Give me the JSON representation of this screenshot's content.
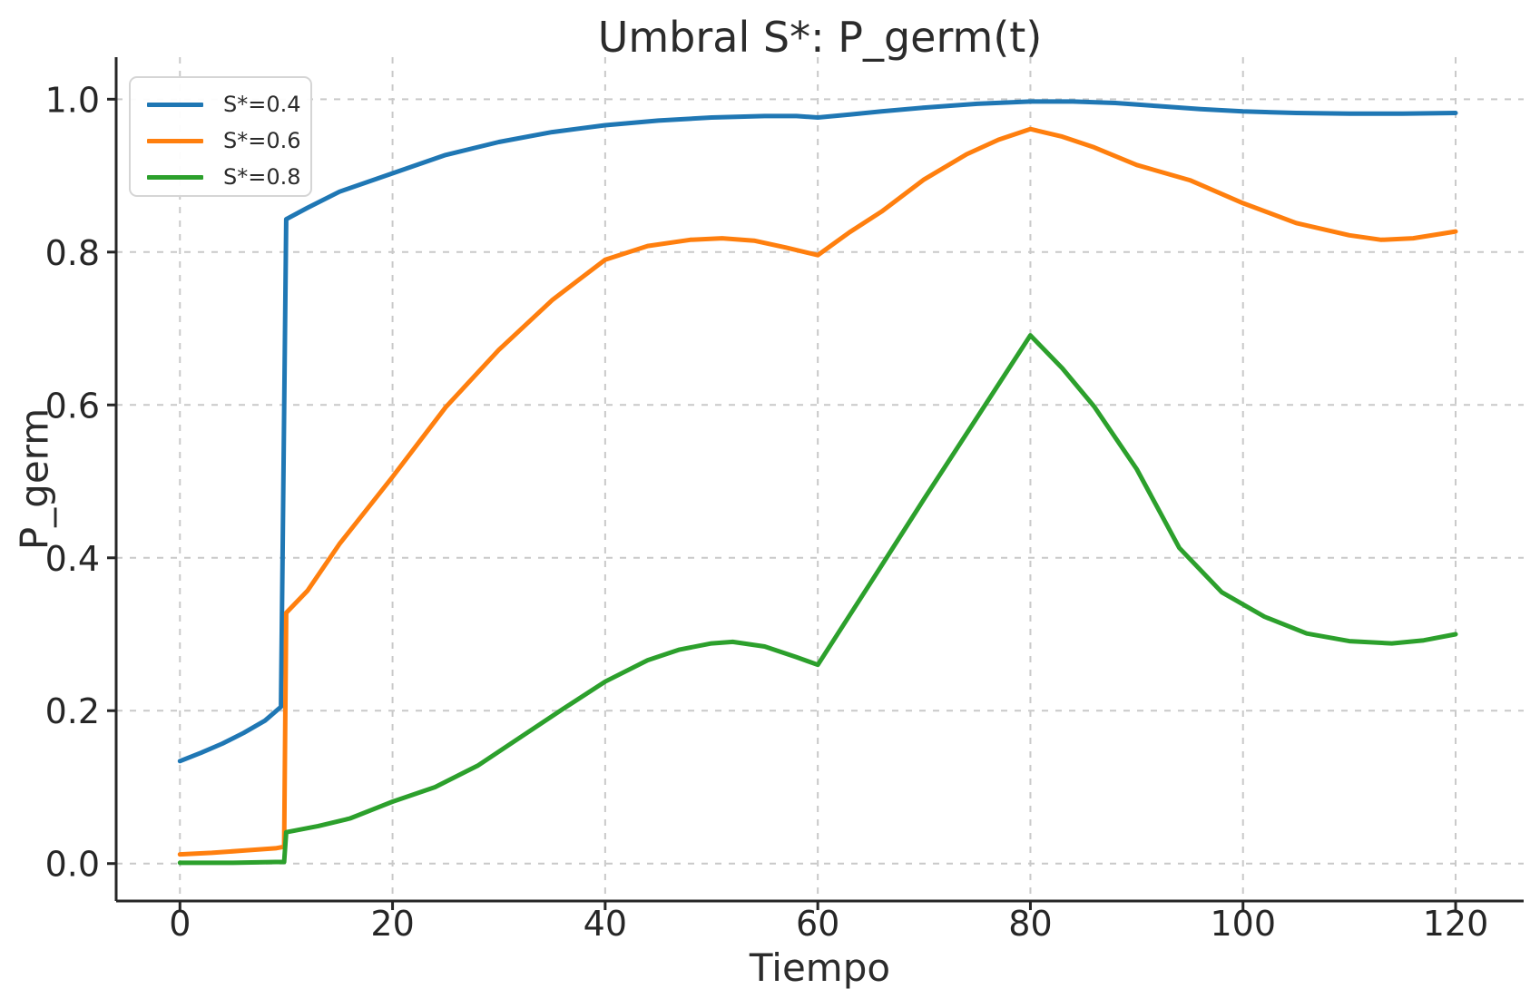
{
  "chart_data": {
    "type": "line",
    "title": "Umbral S*: P_germ(t)",
    "xlabel": "Tiempo",
    "ylabel": "P_germ",
    "x_ticks": [
      0,
      20,
      40,
      60,
      80,
      100,
      120
    ],
    "x_tick_labels": [
      "0",
      "20",
      "40",
      "60",
      "80",
      "100",
      "120"
    ],
    "y_ticks": [
      0.0,
      0.2,
      0.4,
      0.6,
      0.8,
      1.0
    ],
    "y_tick_labels": [
      "0.0",
      "0.2",
      "0.4",
      "0.6",
      "0.8",
      "1.0"
    ],
    "xlim": [
      -6,
      126.4
    ],
    "ylim": [
      -0.049,
      1.055
    ],
    "grid": "dashed",
    "grid_color": "#c9c9c9",
    "axis_color": "#262626",
    "legend_position": "upper-left",
    "series": [
      {
        "name": "S*=0.4",
        "color": "#1f77b4",
        "points": [
          [
            0,
            0.134
          ],
          [
            2,
            0.145
          ],
          [
            4,
            0.157
          ],
          [
            6,
            0.171
          ],
          [
            8,
            0.187
          ],
          [
            9.5,
            0.205
          ],
          [
            10,
            0.843
          ],
          [
            12,
            0.858
          ],
          [
            15,
            0.879
          ],
          [
            20,
            0.903
          ],
          [
            25,
            0.927
          ],
          [
            30,
            0.944
          ],
          [
            35,
            0.957
          ],
          [
            40,
            0.966
          ],
          [
            45,
            0.972
          ],
          [
            50,
            0.976
          ],
          [
            55,
            0.978
          ],
          [
            58,
            0.978
          ],
          [
            60,
            0.976
          ],
          [
            63,
            0.98
          ],
          [
            66,
            0.984
          ],
          [
            70,
            0.989
          ],
          [
            75,
            0.994
          ],
          [
            80,
            0.997
          ],
          [
            84,
            0.997
          ],
          [
            88,
            0.995
          ],
          [
            92,
            0.991
          ],
          [
            96,
            0.987
          ],
          [
            100,
            0.984
          ],
          [
            105,
            0.982
          ],
          [
            110,
            0.981
          ],
          [
            115,
            0.981
          ],
          [
            120,
            0.982
          ]
        ]
      },
      {
        "name": "S*=0.6",
        "color": "#ff7f0e",
        "points": [
          [
            0,
            0.012
          ],
          [
            3,
            0.014
          ],
          [
            6,
            0.017
          ],
          [
            9,
            0.02
          ],
          [
            9.8,
            0.022
          ],
          [
            10,
            0.328
          ],
          [
            12,
            0.357
          ],
          [
            15,
            0.418
          ],
          [
            20,
            0.506
          ],
          [
            25,
            0.597
          ],
          [
            30,
            0.672
          ],
          [
            35,
            0.737
          ],
          [
            40,
            0.79
          ],
          [
            44,
            0.808
          ],
          [
            48,
            0.816
          ],
          [
            51,
            0.818
          ],
          [
            54,
            0.815
          ],
          [
            57,
            0.806
          ],
          [
            60,
            0.796
          ],
          [
            63,
            0.826
          ],
          [
            66,
            0.853
          ],
          [
            70,
            0.895
          ],
          [
            74,
            0.928
          ],
          [
            77,
            0.947
          ],
          [
            80,
            0.961
          ],
          [
            83,
            0.951
          ],
          [
            86,
            0.937
          ],
          [
            90,
            0.914
          ],
          [
            95,
            0.894
          ],
          [
            100,
            0.864
          ],
          [
            105,
            0.838
          ],
          [
            110,
            0.822
          ],
          [
            113,
            0.816
          ],
          [
            116,
            0.818
          ],
          [
            120,
            0.827
          ]
        ]
      },
      {
        "name": "S*=0.8",
        "color": "#2ca02c",
        "points": [
          [
            0,
            0.001
          ],
          [
            5,
            0.001
          ],
          [
            9,
            0.002
          ],
          [
            9.8,
            0.002
          ],
          [
            10,
            0.041
          ],
          [
            13,
            0.049
          ],
          [
            16,
            0.059
          ],
          [
            20,
            0.081
          ],
          [
            24,
            0.1
          ],
          [
            28,
            0.128
          ],
          [
            32,
            0.165
          ],
          [
            36,
            0.202
          ],
          [
            40,
            0.238
          ],
          [
            44,
            0.266
          ],
          [
            47,
            0.28
          ],
          [
            50,
            0.288
          ],
          [
            52,
            0.29
          ],
          [
            55,
            0.284
          ],
          [
            58,
            0.27
          ],
          [
            60,
            0.26
          ],
          [
            65,
            0.368
          ],
          [
            70,
            0.477
          ],
          [
            75,
            0.584
          ],
          [
            80,
            0.691
          ],
          [
            83,
            0.648
          ],
          [
            86,
            0.598
          ],
          [
            90,
            0.516
          ],
          [
            94,
            0.413
          ],
          [
            98,
            0.355
          ],
          [
            102,
            0.323
          ],
          [
            106,
            0.301
          ],
          [
            110,
            0.291
          ],
          [
            114,
            0.288
          ],
          [
            117,
            0.292
          ],
          [
            120,
            0.3
          ]
        ]
      }
    ]
  }
}
